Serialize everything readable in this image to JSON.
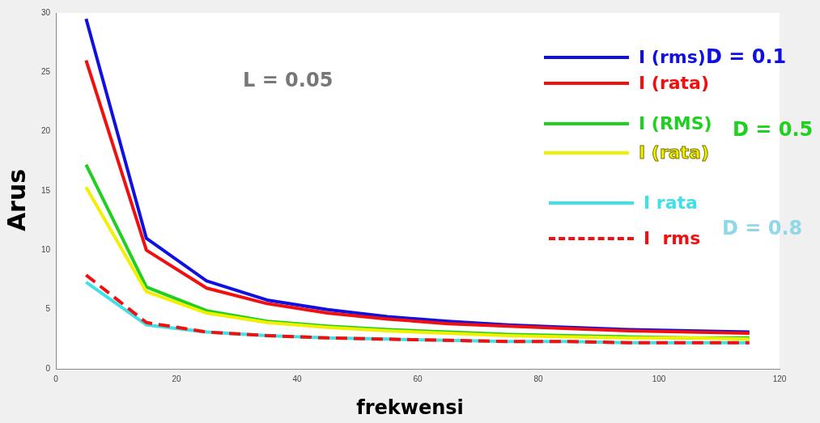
{
  "chart_data": {
    "type": "line",
    "xlabel": "frekwensi",
    "ylabel": "Arus",
    "x": [
      5,
      15,
      25,
      35,
      45,
      55,
      65,
      75,
      85,
      95,
      105,
      115
    ],
    "xlim": [
      0,
      120
    ],
    "xticks": [
      0,
      20,
      40,
      60,
      80,
      100,
      120
    ],
    "ylim": [
      0,
      30
    ],
    "yticks": [
      0,
      5,
      10,
      15,
      20,
      25,
      30
    ],
    "grid": false,
    "legend": "top right",
    "marker": "none",
    "series": [
      {
        "name": "I (rms)",
        "color": "#1010e0",
        "line_style": "solid",
        "values": [
          29.5,
          11,
          7.4,
          5.8,
          5.0,
          4.4,
          4.0,
          3.7,
          3.5,
          3.3,
          3.2,
          3.1
        ]
      },
      {
        "name": "I (rata)",
        "color": "#f01010",
        "line_style": "solid",
        "values": [
          26,
          10,
          6.8,
          5.5,
          4.7,
          4.2,
          3.8,
          3.6,
          3.4,
          3.2,
          3.1,
          3.0
        ]
      },
      {
        "name": "I (RMS)",
        "color": "#20d020",
        "line_style": "solid",
        "values": [
          17.2,
          6.9,
          4.9,
          4.0,
          3.6,
          3.3,
          3.1,
          2.9,
          2.8,
          2.7,
          2.6,
          2.6
        ]
      },
      {
        "name": "I (rata)",
        "color": "#f0f000",
        "line_style": "solid",
        "values": [
          15.3,
          6.5,
          4.7,
          3.9,
          3.5,
          3.2,
          3.0,
          2.8,
          2.7,
          2.6,
          2.6,
          2.5
        ]
      },
      {
        "name": "I rata",
        "color": "#40e0e8",
        "line_style": "solid",
        "values": [
          7.3,
          3.7,
          3.1,
          2.8,
          2.6,
          2.5,
          2.4,
          2.3,
          2.3,
          2.2,
          2.2,
          2.2
        ]
      },
      {
        "name": "I  rms",
        "color": "#f01010",
        "line_style": "dashed",
        "values": [
          7.9,
          3.9,
          3.1,
          2.8,
          2.6,
          2.5,
          2.4,
          2.3,
          2.3,
          2.2,
          2.2,
          2.2
        ]
      }
    ],
    "annotations": [
      "L = 0.05",
      "D = 0.1",
      "D = 0.5",
      "D = 0.8"
    ]
  }
}
